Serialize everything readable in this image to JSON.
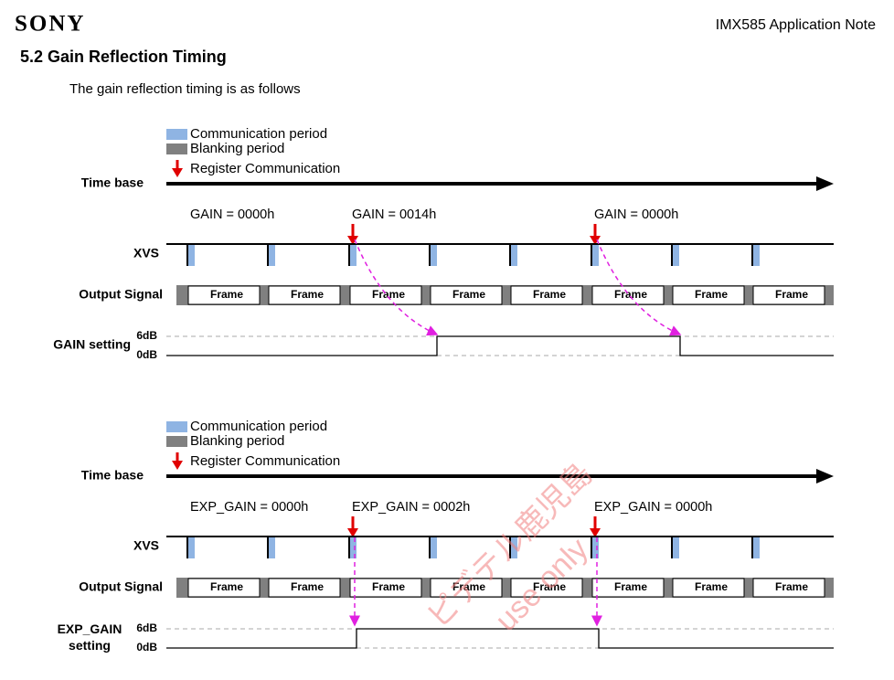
{
  "header": {
    "logo": "SONY",
    "document": "IMX585 Application Note"
  },
  "section": {
    "title": "5.2 Gain Reflection Timing",
    "intro": "The gain reflection timing is as follows"
  },
  "diagrams": [
    {
      "legend": {
        "communication": "Communication period",
        "blanking": "Blanking  period",
        "register": "Register Communication"
      },
      "time_base": "Time base",
      "xvs": "XVS",
      "output": "Output Signal",
      "setting": "GAIN setting",
      "high": "6dB",
      "low": "0dB",
      "annotations": [
        "GAIN = 0000h",
        "GAIN = 0014h",
        "GAIN = 0000h"
      ],
      "frames": [
        "Frame",
        "Frame",
        "Frame",
        "Frame",
        "Frame",
        "Frame",
        "Frame",
        "Frame"
      ]
    },
    {
      "legend": {
        "communication": "Communication period",
        "blanking": "Blanking  period",
        "register": "Register Communication"
      },
      "time_base": "Time base",
      "xvs": "XVS",
      "output": "Output Signal",
      "setting": "EXP_GAIN setting",
      "high": "6dB",
      "low": "0dB",
      "annotations": [
        "EXP_GAIN = 0000h",
        "EXP_GAIN = 0002h",
        "EXP_GAIN = 0000h"
      ],
      "frames": [
        "Frame",
        "Frame",
        "Frame",
        "Frame",
        "Frame",
        "Frame",
        "Frame",
        "Frame"
      ]
    }
  ],
  "watermark": [
    "ピデテル鹿児島",
    "use only"
  ]
}
